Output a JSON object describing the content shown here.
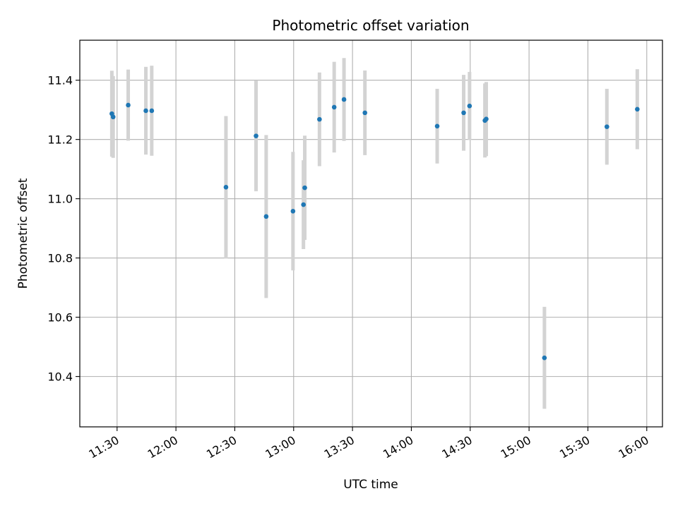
{
  "chart_data": {
    "type": "scatter",
    "title": "Photometric offset variation",
    "xlabel": "UTC time",
    "ylabel": "Photometric offset",
    "xlim": [
      "11:11",
      "16:08"
    ],
    "ylim": [
      10.23,
      11.535
    ],
    "grid": true,
    "x_ticks": [
      "11:30",
      "12:00",
      "12:30",
      "13:00",
      "13:30",
      "14:00",
      "14:30",
      "15:00",
      "15:30",
      "16:00"
    ],
    "y_ticks": [
      "10.4",
      "10.6",
      "10.8",
      "11.0",
      "11.2",
      "11.4"
    ],
    "colors": {
      "point": "#1f77b4",
      "errorbar": "#d3d3d3",
      "grid": "#b0b0b0"
    },
    "points": [
      {
        "x": "11:27:20",
        "y": 11.287,
        "err": 0.145
      },
      {
        "x": "11:28:00",
        "y": 11.276,
        "err": 0.138
      },
      {
        "x": "11:35:40",
        "y": 11.316,
        "err": 0.12
      },
      {
        "x": "11:44:40",
        "y": 11.297,
        "err": 0.148
      },
      {
        "x": "11:47:40",
        "y": 11.297,
        "err": 0.152
      },
      {
        "x": "12:25:30",
        "y": 11.039,
        "err": 0.24
      },
      {
        "x": "12:40:50",
        "y": 11.212,
        "err": 0.187
      },
      {
        "x": "12:46:00",
        "y": 10.94,
        "err": 0.275
      },
      {
        "x": "12:59:40",
        "y": 10.958,
        "err": 0.2
      },
      {
        "x": "13:05:00",
        "y": 10.98,
        "err": 0.15
      },
      {
        "x": "13:05:40",
        "y": 11.037,
        "err": 0.176
      },
      {
        "x": "13:13:10",
        "y": 11.268,
        "err": 0.158
      },
      {
        "x": "13:20:40",
        "y": 11.309,
        "err": 0.153
      },
      {
        "x": "13:25:40",
        "y": 11.335,
        "err": 0.14
      },
      {
        "x": "13:36:20",
        "y": 11.29,
        "err": 0.143
      },
      {
        "x": "14:13:10",
        "y": 11.245,
        "err": 0.126
      },
      {
        "x": "14:26:40",
        "y": 11.29,
        "err": 0.128
      },
      {
        "x": "14:29:40",
        "y": 11.313,
        "err": 0.115
      },
      {
        "x": "14:37:30",
        "y": 11.264,
        "err": 0.125
      },
      {
        "x": "14:38:10",
        "y": 11.269,
        "err": 0.125
      },
      {
        "x": "15:07:50",
        "y": 10.463,
        "err": 0.172
      },
      {
        "x": "15:39:40",
        "y": 11.243,
        "err": 0.128
      },
      {
        "x": "15:55:10",
        "y": 11.302,
        "err": 0.135
      }
    ]
  }
}
